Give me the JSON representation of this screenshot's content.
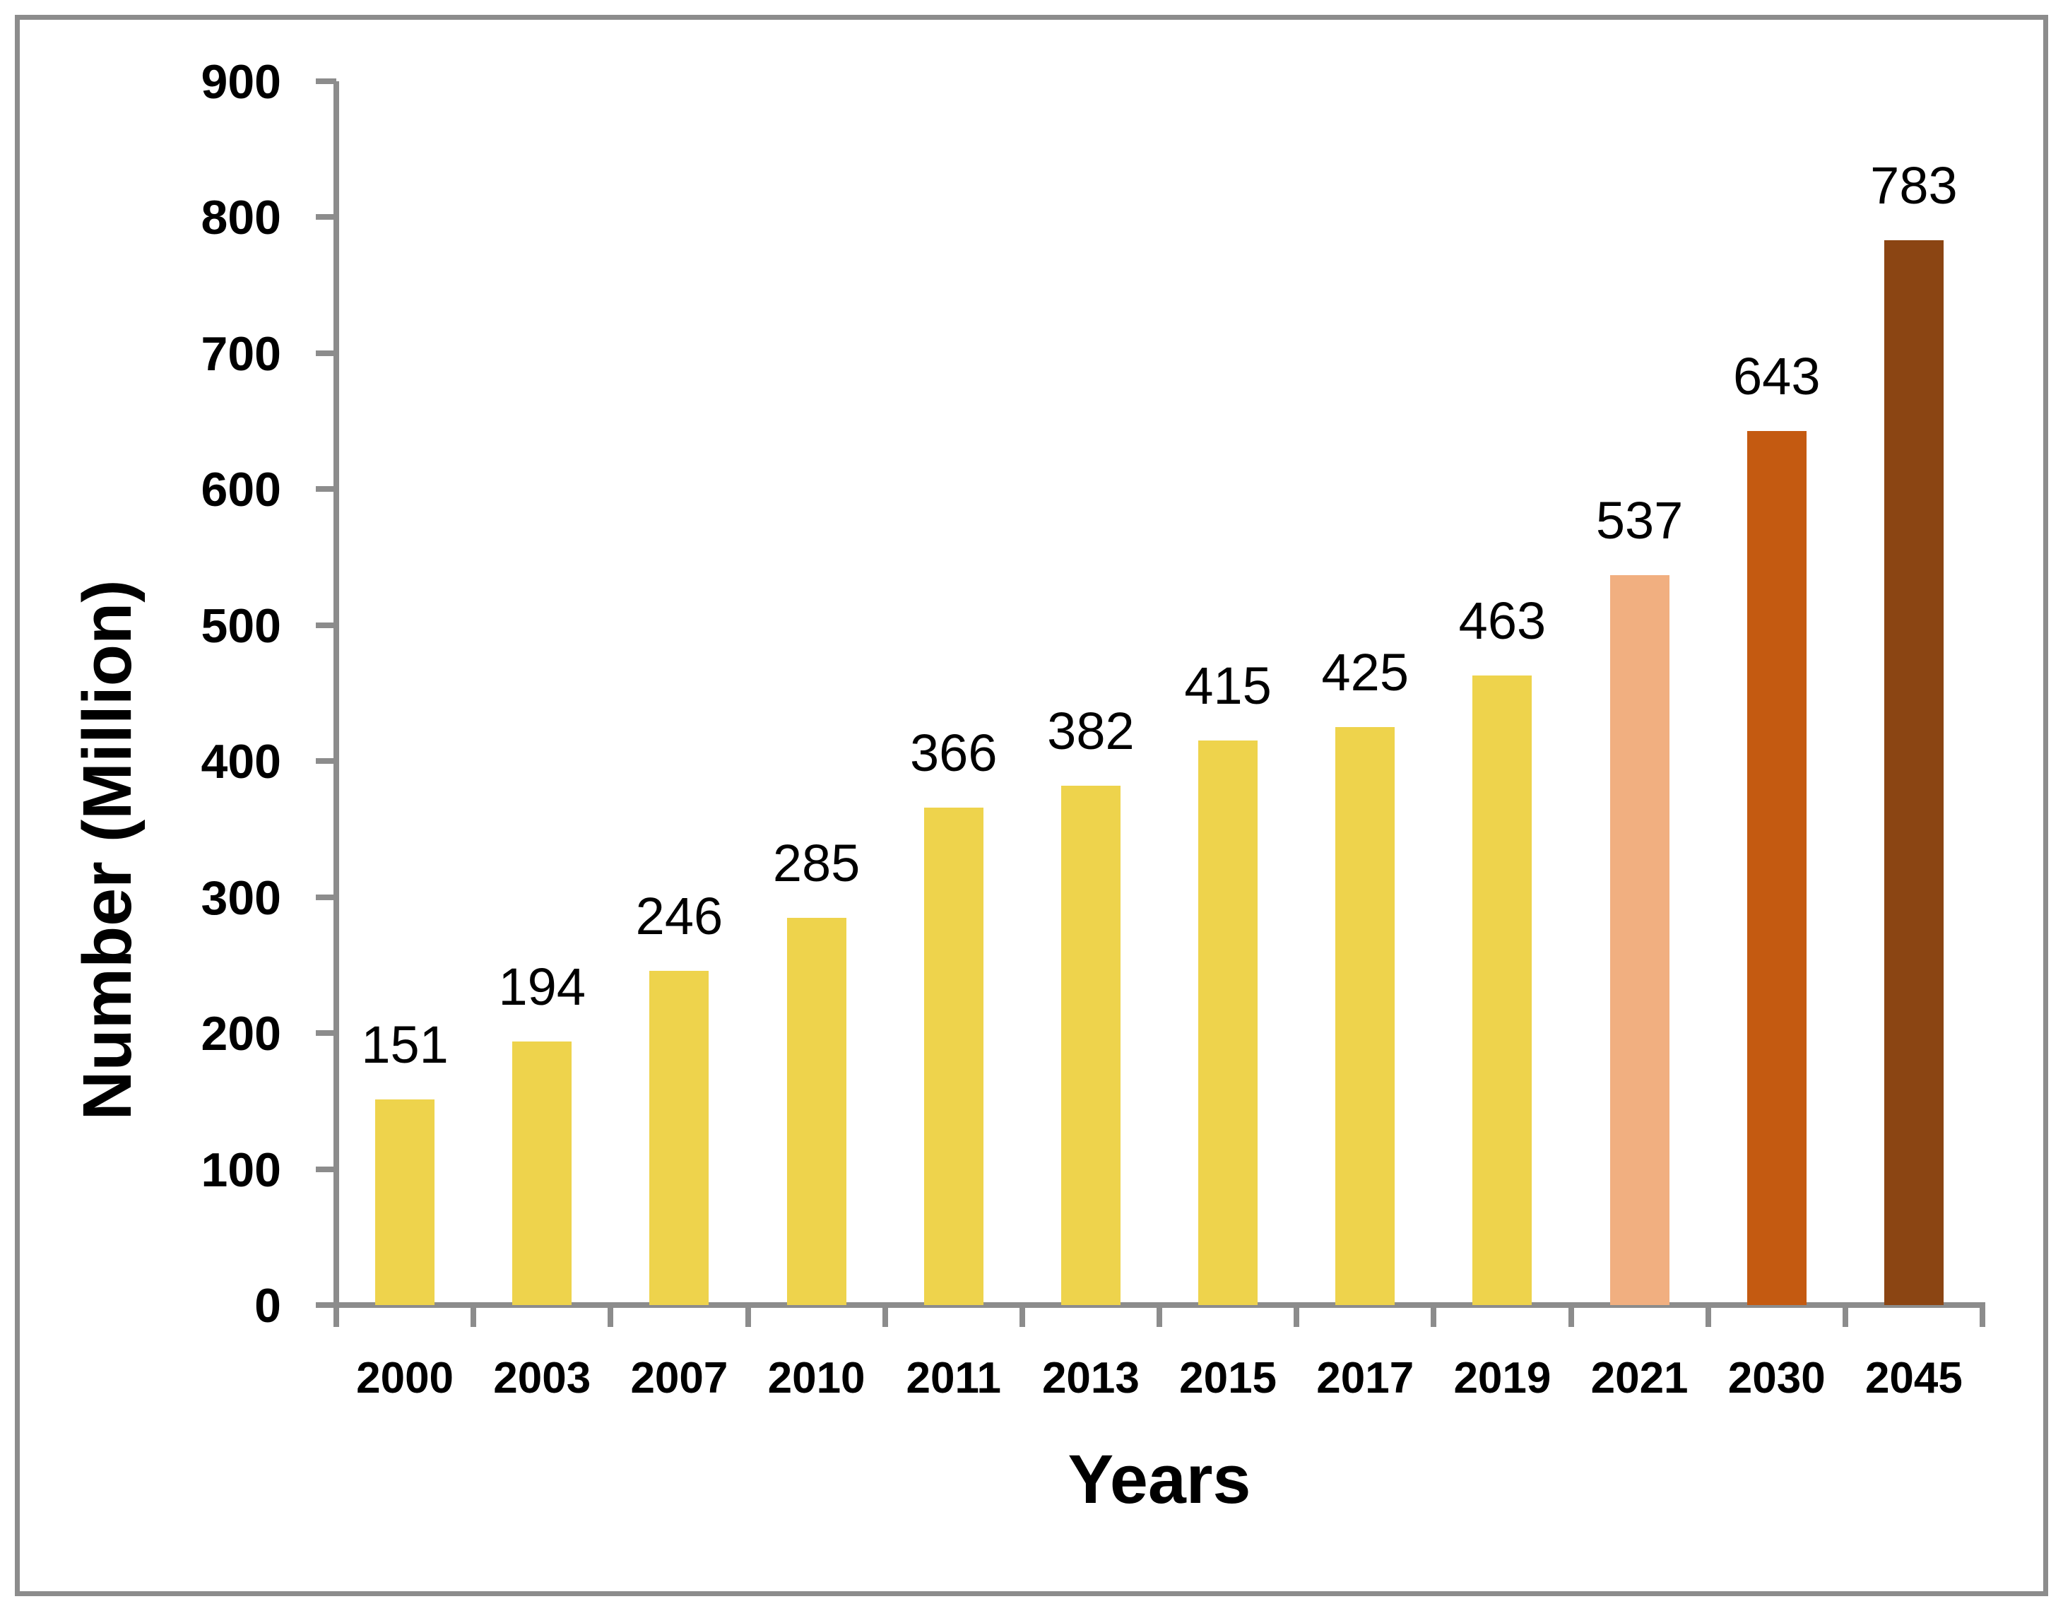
{
  "chart_data": {
    "type": "bar",
    "title": "",
    "xlabel": "Years",
    "ylabel": "Number (Million)",
    "categories": [
      "2000",
      "2003",
      "2007",
      "2010",
      "2011",
      "2013",
      "2015",
      "2017",
      "2019",
      "2021",
      "2030",
      "2045"
    ],
    "values": [
      151,
      194,
      246,
      285,
      366,
      382,
      415,
      425,
      463,
      537,
      643,
      783
    ],
    "data_labels": [
      "151",
      "194",
      "246",
      "285",
      "366",
      "382",
      "415",
      "425",
      "463",
      "537",
      "643",
      "783"
    ],
    "bar_colors": [
      "#EED34C",
      "#EED34C",
      "#EED34C",
      "#EED34C",
      "#EED34C",
      "#EED34C",
      "#EED34C",
      "#EED34C",
      "#EED34C",
      "#F1AF80",
      "#C45A11",
      "#8B4513"
    ],
    "ylim": [
      0,
      900
    ],
    "yticks": [
      0,
      100,
      200,
      300,
      400,
      500,
      600,
      700,
      800,
      900
    ],
    "ytick_labels": [
      "0",
      "100",
      "200",
      "300",
      "400",
      "500",
      "600",
      "700",
      "800",
      "900"
    ],
    "grid": false,
    "legend": "none",
    "axis_color": "#8C8C8C",
    "text_color": "#000000",
    "background_color": "#FFFFFF"
  }
}
